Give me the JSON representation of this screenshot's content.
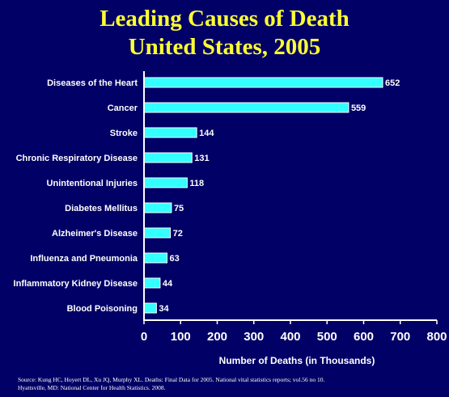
{
  "title_line1": "Leading Causes of Death",
  "title_line2": "United States, 2005",
  "source_line1": "Source: Kung HC, Hoyert DL, Xu JQ, Murphy XL. Deaths: Final Data for 2005. National vital statistics reports; vol.56 no 10.",
  "source_line2": "Hyattsville, MD: National Center for Health Statistics. 2008.",
  "colors": {
    "background": "#000066",
    "title": "#FFFF33",
    "bar": "#33FFFF"
  },
  "chart_data": {
    "type": "bar",
    "orientation": "horizontal",
    "title": "Leading Causes of Death United States, 2005",
    "categories": [
      "Diseases of the Heart",
      "Cancer",
      "Stroke",
      "Chronic Respiratory Disease",
      "Unintentional Injuries",
      "Diabetes Mellitus",
      "Alzheimer's Disease",
      "Influenza and Pneumonia",
      "Inflammatory Kidney Disease",
      "Blood Poisoning"
    ],
    "values": [
      652,
      559,
      144,
      131,
      118,
      75,
      72,
      63,
      44,
      34
    ],
    "value_labels": [
      "652",
      "559",
      "144",
      "131",
      "118",
      "75",
      "72",
      "63",
      "44",
      "34"
    ],
    "xlabel": "Number of Deaths (in Thousands)",
    "xlim": [
      0,
      800
    ],
    "xticks": [
      "0",
      "100",
      "200",
      "300",
      "400",
      "500",
      "600",
      "700",
      "800"
    ],
    "grid": false,
    "legend": "none"
  }
}
